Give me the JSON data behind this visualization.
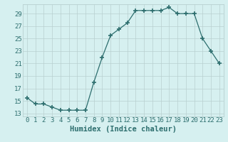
{
  "x": [
    0,
    1,
    2,
    3,
    4,
    5,
    6,
    7,
    8,
    9,
    10,
    11,
    12,
    13,
    14,
    15,
    16,
    17,
    18,
    19,
    20,
    21,
    22,
    23
  ],
  "y": [
    15.5,
    14.5,
    14.5,
    14.0,
    13.5,
    13.5,
    13.5,
    13.5,
    18.0,
    22.0,
    25.5,
    26.5,
    27.5,
    29.5,
    29.5,
    29.5,
    29.5,
    30.0,
    29.0,
    29.0,
    29.0,
    25.0,
    23.0,
    21.0
  ],
  "line_color": "#2d6e6e",
  "marker": "+",
  "marker_size": 4,
  "bg_color": "#d6f0f0",
  "grid_color": "#b8d0d0",
  "xlabel": "Humidex (Indice chaleur)",
  "xlim": [
    -0.5,
    23.5
  ],
  "ylim": [
    12.5,
    30.5
  ],
  "yticks": [
    13,
    15,
    17,
    19,
    21,
    23,
    25,
    27,
    29
  ],
  "xticks": [
    0,
    1,
    2,
    3,
    4,
    5,
    6,
    7,
    8,
    9,
    10,
    11,
    12,
    13,
    14,
    15,
    16,
    17,
    18,
    19,
    20,
    21,
    22,
    23
  ],
  "tick_color": "#2d6e6e",
  "xlabel_fontsize": 7.5,
  "tick_fontsize": 6.5
}
